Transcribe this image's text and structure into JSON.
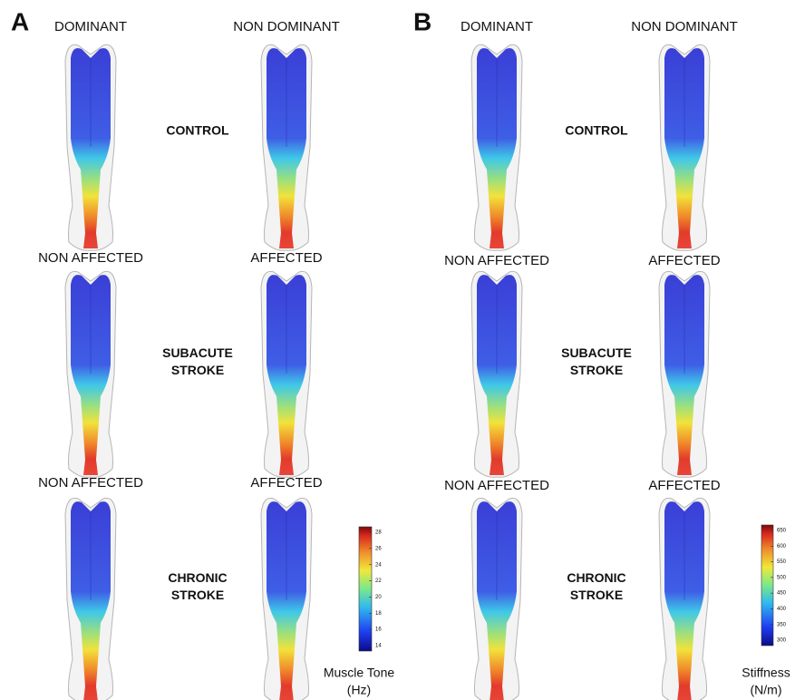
{
  "panels": [
    {
      "letter": "A",
      "rows": [
        {
          "label": [
            "CONTROL"
          ],
          "columns": [
            "DOMINANT",
            "NON DOMINANT"
          ]
        },
        {
          "label": [
            "SUBACUTE",
            "STROKE"
          ],
          "columns": [
            "NON AFFECTED",
            "AFFECTED"
          ]
        },
        {
          "label": [
            "CHRONIC",
            "STROKE"
          ],
          "columns": [
            "NON AFFECTED",
            "AFFECTED"
          ]
        }
      ],
      "colorbar": {
        "ticks": [
          28,
          26,
          24,
          22,
          20,
          18,
          16,
          14
        ],
        "title": [
          "Muscle Tone",
          "(Hz)"
        ]
      }
    },
    {
      "letter": "B",
      "rows": [
        {
          "label": [
            "CONTROL"
          ],
          "columns": [
            "DOMINANT",
            "NON DOMINANT"
          ]
        },
        {
          "label": [
            "SUBACUTE",
            "STROKE"
          ],
          "columns": [
            "NON AFFECTED",
            "AFFECTED"
          ]
        },
        {
          "label": [
            "CHRONIC",
            "STROKE"
          ],
          "columns": [
            "NON AFFECTED",
            "AFFECTED"
          ]
        }
      ],
      "colorbar": {
        "ticks": [
          650,
          600,
          550,
          500,
          450,
          400,
          350,
          300
        ],
        "title": [
          "Stiffness",
          "(N/m)"
        ]
      }
    }
  ]
}
